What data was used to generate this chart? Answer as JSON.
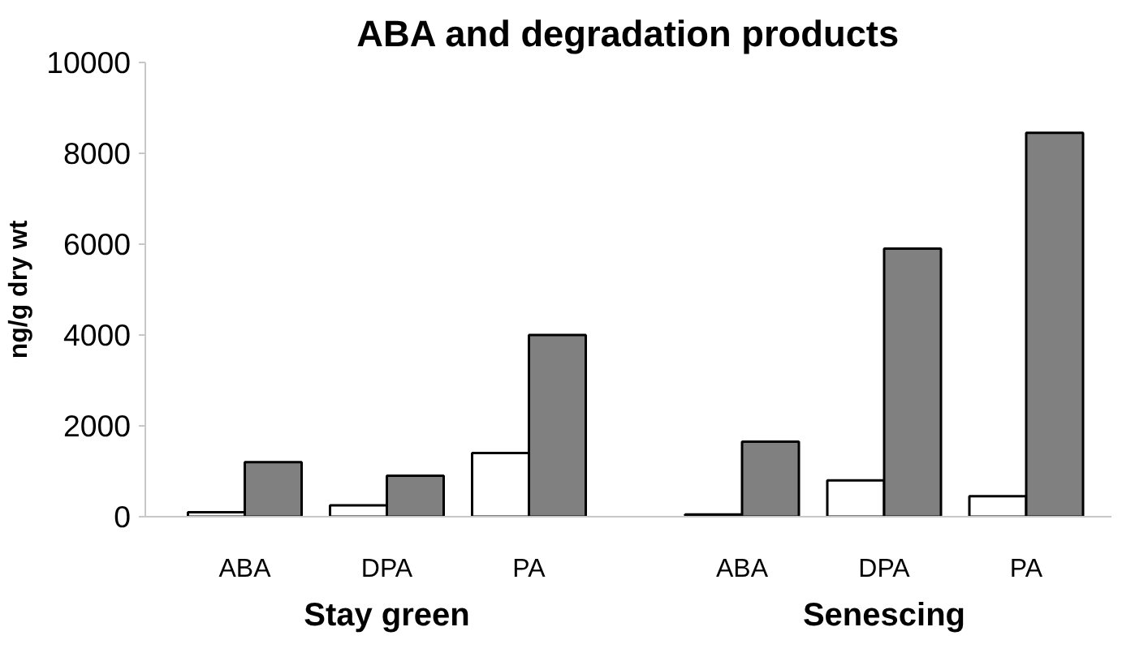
{
  "chart_data": {
    "type": "bar",
    "title": "ABA and degradation products",
    "ylabel": "ng/g dry wt",
    "categories": [
      "ABA",
      "DPA",
      "PA",
      null,
      "ABA",
      "DPA",
      "PA"
    ],
    "series": [
      {
        "color": "#ffffff",
        "values": [
          100,
          250,
          1400,
          null,
          50,
          800,
          450
        ]
      },
      {
        "color": "#808080",
        "values": [
          1200,
          900,
          4000,
          null,
          1650,
          5900,
          8450
        ]
      }
    ],
    "annotations": [
      "Stay green",
      "Senescing"
    ],
    "ylim": [
      0,
      10000
    ],
    "yticks": [
      0,
      2000,
      4000,
      6000,
      8000,
      10000
    ],
    "grid": false
  }
}
